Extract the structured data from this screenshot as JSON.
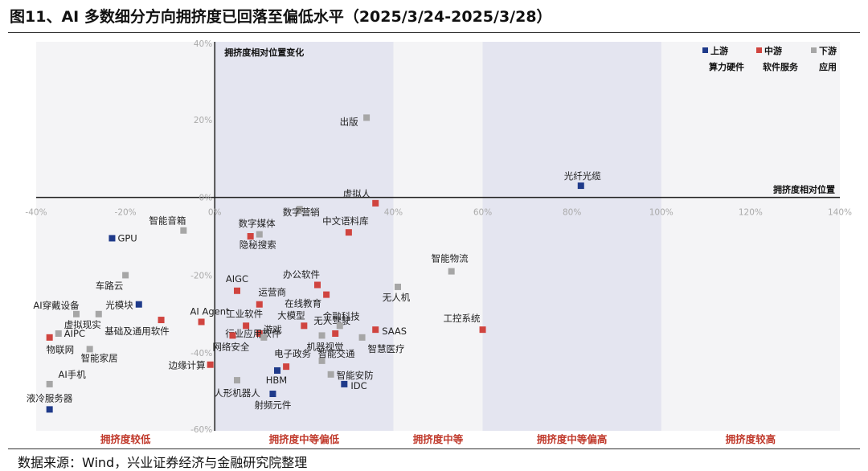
{
  "title": "图11、AI 多数细分方向拥挤度已回落至偏低水平（2025/3/24-2025/3/28）",
  "source": "数据来源：Wind，兴业证券经济与金融研究院整理",
  "chart_data": {
    "type": "scatter",
    "xlabel": "拥挤度相对位置",
    "ylabel": "拥挤度相对位置变化",
    "xlim": [
      -40,
      140
    ],
    "ylim": [
      -60,
      40
    ],
    "x_ticks": [
      "-40%",
      "-20%",
      "0%",
      "20%",
      "40%",
      "60%",
      "80%",
      "100%",
      "120%",
      "140%"
    ],
    "y_ticks": [
      "40%",
      "20%",
      "0%",
      "-20%",
      "-40%",
      "-60%"
    ],
    "zones": [
      {
        "label": "拥挤度较低",
        "from": -40,
        "to": 0,
        "shaded": false
      },
      {
        "label": "拥挤度中等偏低",
        "from": 0,
        "to": 40,
        "shaded": true
      },
      {
        "label": "拥挤度中等",
        "from": 40,
        "to": 60,
        "shaded": false
      },
      {
        "label": "拥挤度中等偏高",
        "from": 60,
        "to": 100,
        "shaded": true
      },
      {
        "label": "拥挤度较高",
        "from": 100,
        "to": 140,
        "shaded": false
      }
    ],
    "legend": {
      "placement": "top-right",
      "items": [
        {
          "name": "上游",
          "sub": "算力硬件",
          "color": "#1f3a8a"
        },
        {
          "name": "中游",
          "sub": "软件服务",
          "color": "#d0443f"
        },
        {
          "name": "下游",
          "sub": "应用",
          "color": "#a6a6a6"
        }
      ]
    },
    "points": [
      {
        "name": "光纤光缆",
        "x": 82,
        "y": 3,
        "group": "上游"
      },
      {
        "name": "GPU",
        "x": -23,
        "y": -10.5,
        "group": "上游"
      },
      {
        "name": "光模块",
        "x": -17,
        "y": -27.5,
        "group": "上游"
      },
      {
        "name": "液冷服务器",
        "x": -37,
        "y": -54.5,
        "group": "上游"
      },
      {
        "name": "HBM",
        "x": 14,
        "y": -44.5,
        "group": "上游"
      },
      {
        "name": "射频元件",
        "x": 13,
        "y": -50.5,
        "group": "上游"
      },
      {
        "name": "IDC",
        "x": 29,
        "y": -48,
        "group": "上游"
      },
      {
        "name": "虚拟人",
        "x": 36,
        "y": -1.5,
        "group": "中游"
      },
      {
        "name": "中文语料库",
        "x": 30,
        "y": -9,
        "group": "中游"
      },
      {
        "name": "数字媒体",
        "x": 8,
        "y": -10,
        "group": "中游"
      },
      {
        "name": "AIGC",
        "x": 5,
        "y": -24,
        "group": "中游"
      },
      {
        "name": "办公软件",
        "x": 23,
        "y": -22.5,
        "group": "中游"
      },
      {
        "name": "在线教育",
        "x": 25,
        "y": -25,
        "group": "中游"
      },
      {
        "name": "运营商",
        "x": 10,
        "y": -27.5,
        "group": "中游"
      },
      {
        "name": "AI Agent",
        "x": -3,
        "y": -32,
        "group": "中游"
      },
      {
        "name": "基础及通用软件",
        "x": -12,
        "y": -31.5,
        "group": "中游"
      },
      {
        "name": "工业软件",
        "x": 7,
        "y": -33,
        "group": "中游"
      },
      {
        "name": "大模型",
        "x": 20,
        "y": -33,
        "group": "中游"
      },
      {
        "name": "无人驾驶",
        "x": 27,
        "y": -35,
        "group": "中游"
      },
      {
        "name": "行业应用软件",
        "x": 10,
        "y": -35,
        "group": "中游"
      },
      {
        "name": "网络安全",
        "x": 4,
        "y": -35.5,
        "group": "中游"
      },
      {
        "name": "SAAS",
        "x": 36,
        "y": -34,
        "group": "中游"
      },
      {
        "name": "工控系统",
        "x": 60,
        "y": -34,
        "group": "中游"
      },
      {
        "name": "物联网",
        "x": -37,
        "y": -36,
        "group": "中游"
      },
      {
        "name": "边缘计算",
        "x": -1,
        "y": -43,
        "group": "中游"
      },
      {
        "name": "电子政务",
        "x": 16,
        "y": -43.5,
        "group": "中游"
      },
      {
        "name": "出版",
        "x": 34,
        "y": 20.5,
        "group": "下游"
      },
      {
        "name": "数字营销",
        "x": 19,
        "y": -3,
        "group": "下游"
      },
      {
        "name": "隐秘搜索",
        "x": 10,
        "y": -9.5,
        "group": "下游"
      },
      {
        "name": "智能音箱",
        "x": -7,
        "y": -8.5,
        "group": "下游"
      },
      {
        "name": "车路云",
        "x": -20,
        "y": -20,
        "group": "下游"
      },
      {
        "name": "智能物流",
        "x": 53,
        "y": -19,
        "group": "下游"
      },
      {
        "name": "无人机",
        "x": 41,
        "y": -23,
        "group": "下游"
      },
      {
        "name": "AI穿戴设备",
        "x": -31,
        "y": -30,
        "group": "下游"
      },
      {
        "name": "虚拟现实",
        "x": -26,
        "y": -30,
        "group": "下游"
      },
      {
        "name": "AIPC",
        "x": -35,
        "y": -35,
        "group": "下游"
      },
      {
        "name": "游戏",
        "x": 11,
        "y": -36,
        "group": "下游"
      },
      {
        "name": "金融科技",
        "x": 28,
        "y": -33,
        "group": "下游"
      },
      {
        "name": "机器视觉",
        "x": 24,
        "y": -35.5,
        "group": "下游"
      },
      {
        "name": "智慧医疗",
        "x": 33,
        "y": -36,
        "group": "下游"
      },
      {
        "name": "智能家居",
        "x": -28,
        "y": -39,
        "group": "下游"
      },
      {
        "name": "智能交通",
        "x": 24,
        "y": -42,
        "group": "下游"
      },
      {
        "name": "智能安防",
        "x": 26,
        "y": -45.5,
        "group": "下游"
      },
      {
        "name": "人形机器人",
        "x": 5,
        "y": -47,
        "group": "下游"
      },
      {
        "name": "AI手机",
        "x": -37,
        "y": -48,
        "group": "下游"
      }
    ]
  }
}
